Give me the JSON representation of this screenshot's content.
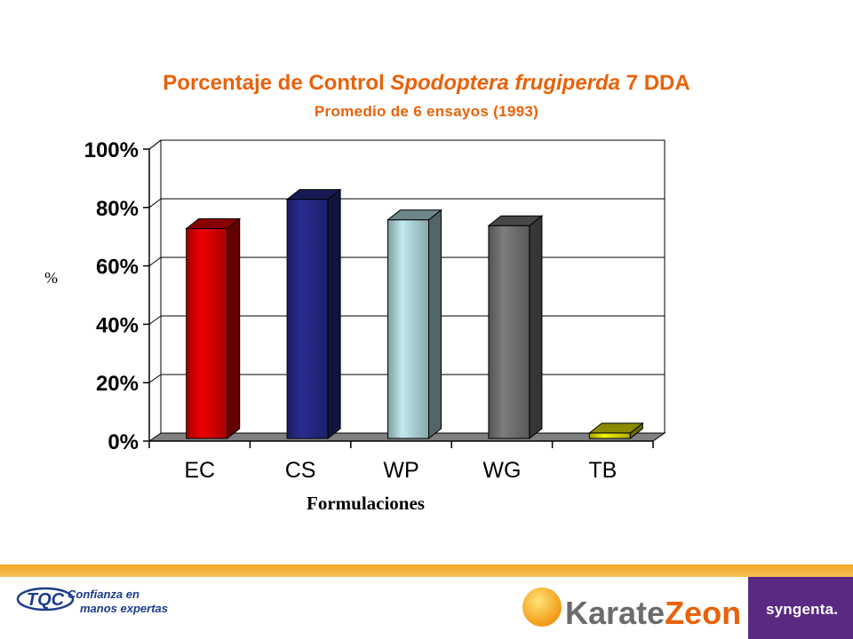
{
  "header": {
    "title_prefix": "Porcentaje de Control ",
    "title_species": "Spodoptera frugiperda",
    "title_suffix": " 7 DDA",
    "subtitle": "Promedio  de 6 ensayos (1993)"
  },
  "chart_data": {
    "type": "bar",
    "title": "Porcentaje de Control Spodoptera frugiperda 7 DDA",
    "subtitle": "Promedio  de 6 ensayos (1993)",
    "xlabel": "Formulaciones",
    "ylabel": "%",
    "categories": [
      "EC",
      "CS",
      "WP",
      "WG",
      "TB"
    ],
    "values": [
      74,
      84,
      77,
      75,
      4
    ],
    "colors": [
      "#e30000",
      "#262a8a",
      "#b8dfe3",
      "#777777",
      "#e8e800"
    ],
    "yticks": [
      "0%",
      "20%",
      "40%",
      "60%",
      "80%",
      "100%"
    ],
    "ylim": [
      0,
      100
    ],
    "grid": true,
    "legend": "none",
    "style": "3d-bars"
  },
  "footer": {
    "tqc_logo_text": "TQC",
    "tqc_slogan_line1": "Confianza en",
    "tqc_slogan_line2": "manos expertas",
    "karate_word_1": "Karate",
    "karate_word_2": "Zeon",
    "syngenta_text": "syngenta.",
    "stripe_color": "#f5a623",
    "syngenta_color": "#5a2a82"
  }
}
